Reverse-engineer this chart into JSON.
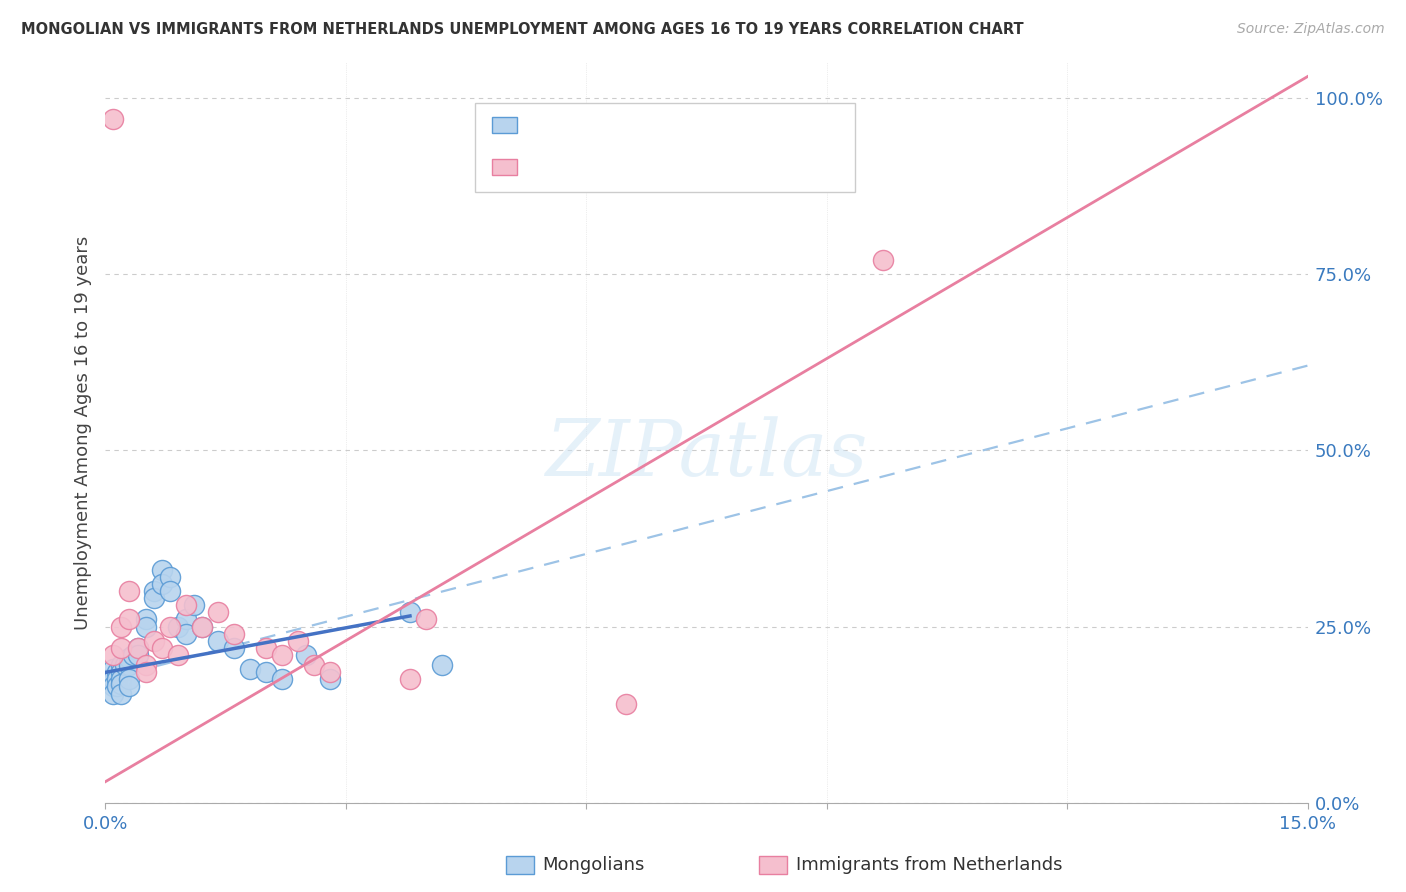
{
  "title": "MONGOLIAN VS IMMIGRANTS FROM NETHERLANDS UNEMPLOYMENT AMONG AGES 16 TO 19 YEARS CORRELATION CHART",
  "source": "Source: ZipAtlas.com",
  "ylabel": "Unemployment Among Ages 16 to 19 years",
  "xlim": [
    0.0,
    0.15
  ],
  "ylim": [
    0.0,
    1.05
  ],
  "xticks": [
    0.0,
    0.03,
    0.06,
    0.09,
    0.12,
    0.15
  ],
  "xticklabels": [
    "0.0%",
    "",
    "",
    "",
    "",
    "15.0%"
  ],
  "yticks_right": [
    0.0,
    0.25,
    0.5,
    0.75,
    1.0
  ],
  "ytick_right_labels": [
    "0.0%",
    "25.0%",
    "50.0%",
    "75.0%",
    "100.0%"
  ],
  "mongolian_color": "#b8d4ee",
  "netherlands_color": "#f5bfce",
  "mongolian_edge": "#5b9bd5",
  "netherlands_edge": "#e87fa0",
  "mongolian_line_color": "#4472c4",
  "netherlands_line_color": "#e87fa0",
  "dashed_line_color": "#9dc3e6",
  "watermark": "ZIPatlas",
  "mongolian_x": [
    0.0005,
    0.001,
    0.001,
    0.001,
    0.001,
    0.0015,
    0.0015,
    0.0015,
    0.002,
    0.002,
    0.002,
    0.002,
    0.002,
    0.0025,
    0.003,
    0.003,
    0.003,
    0.003,
    0.0035,
    0.004,
    0.004,
    0.005,
    0.005,
    0.006,
    0.006,
    0.007,
    0.007,
    0.008,
    0.008,
    0.009,
    0.01,
    0.01,
    0.011,
    0.012,
    0.014,
    0.016,
    0.018,
    0.02,
    0.022,
    0.025,
    0.028,
    0.038,
    0.042
  ],
  "mongolian_y": [
    0.175,
    0.19,
    0.175,
    0.165,
    0.155,
    0.185,
    0.175,
    0.165,
    0.195,
    0.185,
    0.175,
    0.168,
    0.155,
    0.195,
    0.205,
    0.195,
    0.175,
    0.165,
    0.21,
    0.22,
    0.21,
    0.26,
    0.25,
    0.3,
    0.29,
    0.33,
    0.31,
    0.32,
    0.3,
    0.25,
    0.26,
    0.24,
    0.28,
    0.25,
    0.23,
    0.22,
    0.19,
    0.185,
    0.175,
    0.21,
    0.175,
    0.27,
    0.195
  ],
  "netherlands_x": [
    0.001,
    0.001,
    0.002,
    0.002,
    0.003,
    0.003,
    0.004,
    0.005,
    0.005,
    0.006,
    0.007,
    0.008,
    0.009,
    0.01,
    0.012,
    0.014,
    0.016,
    0.02,
    0.022,
    0.024,
    0.026,
    0.028,
    0.038,
    0.04,
    0.065,
    0.097
  ],
  "netherlands_y": [
    0.97,
    0.21,
    0.25,
    0.22,
    0.3,
    0.26,
    0.22,
    0.195,
    0.185,
    0.23,
    0.22,
    0.25,
    0.21,
    0.28,
    0.25,
    0.27,
    0.24,
    0.22,
    0.21,
    0.23,
    0.195,
    0.185,
    0.175,
    0.26,
    0.14,
    0.77
  ],
  "mongolian_line_x": [
    0.0,
    0.038
  ],
  "mongolian_line_y": [
    0.185,
    0.265
  ],
  "netherlands_line_x": [
    0.0,
    0.15
  ],
  "netherlands_line_y": [
    0.03,
    1.03
  ],
  "dashed_line_x": [
    0.0,
    0.15
  ],
  "dashed_line_y": [
    0.175,
    0.62
  ]
}
